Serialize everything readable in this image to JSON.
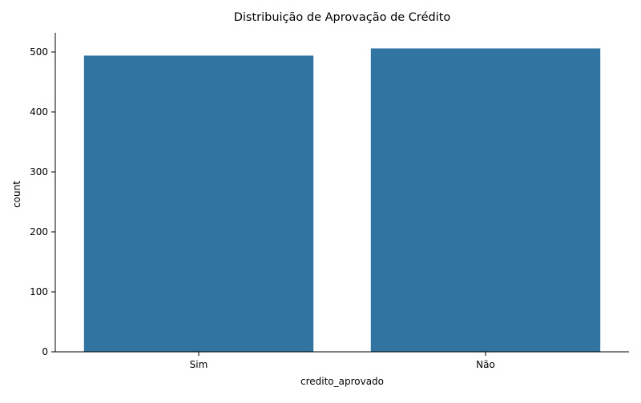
{
  "chart_data": {
    "type": "bar",
    "title": "Distribuição de Aprovação de Crédito",
    "xlabel": "credito_aprovado",
    "ylabel": "count",
    "categories": [
      "Sim",
      "Não"
    ],
    "values": [
      494,
      506
    ],
    "ylim": [
      0,
      532
    ],
    "yticks": [
      0,
      100,
      200,
      300,
      400,
      500
    ],
    "bar_color": "#3274a1",
    "grid": false,
    "legend": "none"
  }
}
